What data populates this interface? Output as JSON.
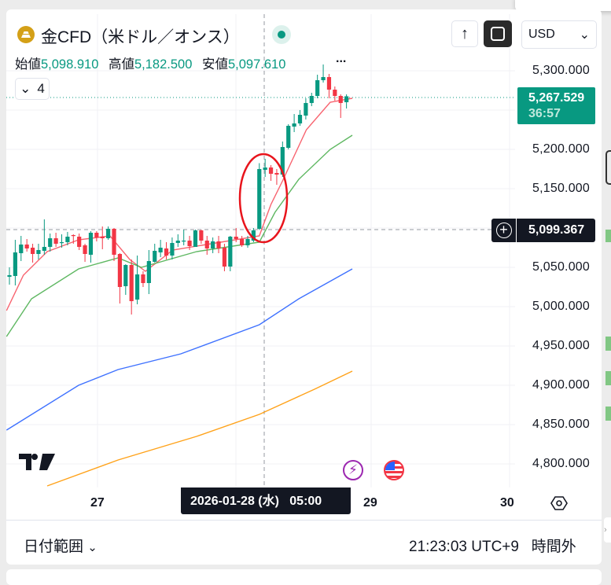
{
  "header": {
    "symbol_title": "金CFD（米ドル／オンス）",
    "ohlc": [
      {
        "label": "始値",
        "value": "5,098.910"
      },
      {
        "label": "高値",
        "value": "5,182.500"
      },
      {
        "label": "安値",
        "value": "5,097.610"
      }
    ],
    "more_label": "...",
    "indicators_collapse_count": "4",
    "up_arrow": "↑",
    "currency": "USD"
  },
  "price_axis": {
    "ticks": [
      "5,300.000",
      "5,200.000",
      "5,150.000",
      "5,050.000",
      "5,000.000",
      "4,950.000",
      "4,900.000",
      "4,850.000",
      "4,800.000"
    ],
    "last_price": "5,267.529",
    "countdown": "36:57",
    "crosshair_price": "5,099.367"
  },
  "time_axis": {
    "ticks": [
      "27",
      "29",
      "30"
    ],
    "crosshair_label": "2026-01-28 (水)   05:00"
  },
  "footer": {
    "date_range": "日付範囲",
    "clock": "21:23:03 UTC+9",
    "session": "時間外"
  },
  "colors": {
    "up": "#089981",
    "down": "#f23645",
    "ma_fast": "#f7525f",
    "ma_mid": "#4caf50",
    "ma_slow": "#2962ff",
    "ma_long": "#ff9800",
    "annotation": "#e8141c"
  },
  "chart_data": {
    "type": "candlestick",
    "ylim": [
      4780,
      5320
    ],
    "ohlc": [
      [
        5038,
        5050,
        5028,
        5040
      ],
      [
        5039,
        5085,
        5027,
        5069
      ],
      [
        5068,
        5090,
        5058,
        5079
      ],
      [
        5079,
        5086,
        5070,
        5074
      ],
      [
        5075,
        5080,
        5056,
        5067
      ],
      [
        5067,
        5080,
        5060,
        5072
      ],
      [
        5071,
        5111,
        5066,
        5076
      ],
      [
        5076,
        5093,
        5070,
        5087
      ],
      [
        5087,
        5094,
        5076,
        5080
      ],
      [
        5081,
        5092,
        5075,
        5082
      ],
      [
        5082,
        5095,
        5078,
        5089
      ],
      [
        5091,
        5092,
        5080,
        5090
      ],
      [
        5089,
        5093,
        5072,
        5076
      ],
      [
        5078,
        5080,
        5057,
        5067
      ],
      [
        5066,
        5096,
        5056,
        5094
      ],
      [
        5094,
        5096,
        5083,
        5088
      ],
      [
        5089,
        5102,
        5073,
        5087
      ],
      [
        5087,
        5102,
        5085,
        5099
      ],
      [
        5099,
        5100,
        5058,
        5066
      ],
      [
        5067,
        5068,
        5004,
        5025
      ],
      [
        5026,
        5054,
        5015,
        5053
      ],
      [
        5053,
        5060,
        4990,
        5007
      ],
      [
        5009,
        5065,
        5003,
        5041
      ],
      [
        5041,
        5045,
        5025,
        5030
      ],
      [
        5030,
        5072,
        5016,
        5058
      ],
      [
        5057,
        5080,
        5056,
        5071
      ],
      [
        5069,
        5085,
        5063,
        5075
      ],
      [
        5074,
        5082,
        5060,
        5065
      ],
      [
        5065,
        5088,
        5060,
        5081
      ],
      [
        5081,
        5092,
        5076,
        5084
      ],
      [
        5083,
        5098,
        5078,
        5084
      ],
      [
        5084,
        5090,
        5072,
        5077
      ],
      [
        5076,
        5098,
        5076,
        5097
      ],
      [
        5097,
        5098,
        5080,
        5084
      ],
      [
        5084,
        5090,
        5066,
        5074
      ],
      [
        5074,
        5088,
        5068,
        5083
      ],
      [
        5083,
        5090,
        5068,
        5074
      ],
      [
        5075,
        5080,
        5045,
        5051
      ],
      [
        5051,
        5090,
        5045,
        5089
      ],
      [
        5089,
        5100,
        5082,
        5086
      ],
      [
        5086,
        5090,
        5076,
        5078
      ],
      [
        5078,
        5090,
        5075,
        5086
      ],
      [
        5084,
        5100,
        5082,
        5097
      ],
      [
        5098.91,
        5182.5,
        5097.61,
        5175
      ],
      [
        5174,
        5188,
        5165,
        5177
      ],
      [
        5177,
        5180,
        5160,
        5169
      ],
      [
        5170,
        5175,
        5155,
        5168
      ],
      [
        5168,
        5210,
        5165,
        5203
      ],
      [
        5202,
        5232,
        5200,
        5230
      ],
      [
        5229,
        5245,
        5222,
        5233
      ],
      [
        5233,
        5250,
        5230,
        5244
      ],
      [
        5243,
        5265,
        5238,
        5259
      ],
      [
        5259,
        5272,
        5255,
        5268
      ],
      [
        5268,
        5295,
        5265,
        5288
      ],
      [
        5288,
        5308,
        5285,
        5292
      ],
      [
        5292,
        5296,
        5265,
        5276
      ],
      [
        5276,
        5280,
        5262,
        5268
      ],
      [
        5268,
        5270,
        5240,
        5259
      ],
      [
        5260,
        5270,
        5252,
        5267.529
      ]
    ],
    "moving_averages": [
      {
        "color_key": "ma_fast",
        "points": [
          [
            -0.5,
            4995
          ],
          [
            2.4,
            5040
          ],
          [
            6.5,
            5070
          ],
          [
            11.9,
            5085
          ],
          [
            17.3,
            5090
          ],
          [
            20.7,
            5060
          ],
          [
            23.4,
            5045
          ],
          [
            28.1,
            5072
          ],
          [
            43,
            5090
          ],
          [
            45,
            5130
          ],
          [
            47,
            5160
          ],
          [
            51.1,
            5225
          ],
          [
            55.2,
            5260
          ],
          [
            59,
            5265
          ]
        ]
      },
      {
        "color_key": "ma_mid",
        "points": [
          [
            -0.5,
            4962
          ],
          [
            3.8,
            5010
          ],
          [
            11.9,
            5048
          ],
          [
            18.7,
            5062
          ],
          [
            22.7,
            5050
          ],
          [
            32.2,
            5070
          ],
          [
            43,
            5082
          ],
          [
            45.7,
            5120
          ],
          [
            49.8,
            5162
          ],
          [
            55.2,
            5200
          ],
          [
            59,
            5218
          ]
        ]
      },
      {
        "color_key": "ma_slow",
        "points": [
          [
            -0.5,
            4843
          ],
          [
            11.9,
            4900
          ],
          [
            18.7,
            4920
          ],
          [
            29.5,
            4940
          ],
          [
            43,
            4977
          ],
          [
            49.8,
            5010
          ],
          [
            59,
            5048
          ]
        ]
      },
      {
        "color_key": "ma_long",
        "points": [
          [
            6.5,
            4772
          ],
          [
            18.7,
            4805
          ],
          [
            32.2,
            4835
          ],
          [
            43,
            4863
          ],
          [
            52.5,
            4895
          ],
          [
            59,
            4918
          ]
        ]
      }
    ]
  }
}
